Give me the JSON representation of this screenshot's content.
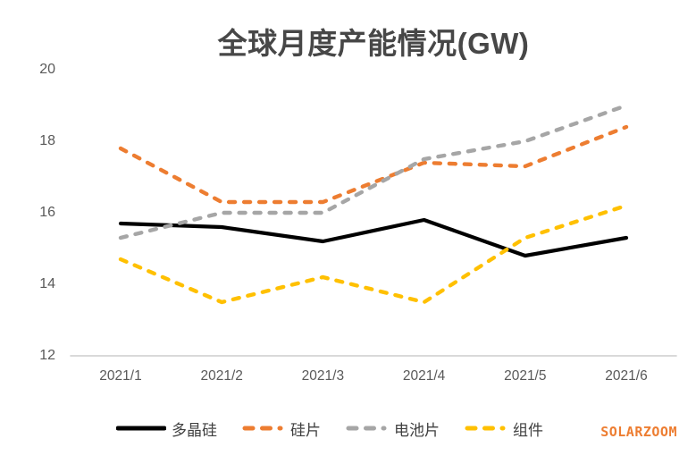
{
  "chart_data": {
    "type": "line",
    "title": "全球月度产能情况(GW)",
    "categories": [
      "2021/1",
      "2021/2",
      "2021/3",
      "2021/4",
      "2021/5",
      "2021/6"
    ],
    "series": [
      {
        "name": "多晶硅",
        "color": "#000000",
        "style": "solid",
        "values": [
          15.7,
          15.6,
          15.2,
          15.8,
          14.8,
          15.3
        ]
      },
      {
        "name": "硅片",
        "color": "#ED7D31",
        "style": "dashed",
        "values": [
          17.8,
          16.3,
          16.3,
          17.4,
          17.3,
          18.4
        ]
      },
      {
        "name": "电池片",
        "color": "#A6A6A6",
        "style": "dashed",
        "values": [
          15.3,
          16.0,
          16.0,
          17.5,
          18.0,
          19.0
        ]
      },
      {
        "name": "组件",
        "color": "#FFC000",
        "style": "dashed",
        "values": [
          14.7,
          13.5,
          14.2,
          13.5,
          15.3,
          16.2
        ]
      }
    ],
    "ylim": [
      12,
      20
    ],
    "yticks": [
      12,
      14,
      16,
      18,
      20
    ],
    "xlabel": "",
    "ylabel": "",
    "grid": false,
    "legend_position": "bottom",
    "axis_line_color": "#D9D9D9",
    "tick_text_color": "#595959",
    "title_color": "#474747"
  },
  "watermark": {
    "text": "SOLARZOOM",
    "color": "#ED7D31"
  }
}
